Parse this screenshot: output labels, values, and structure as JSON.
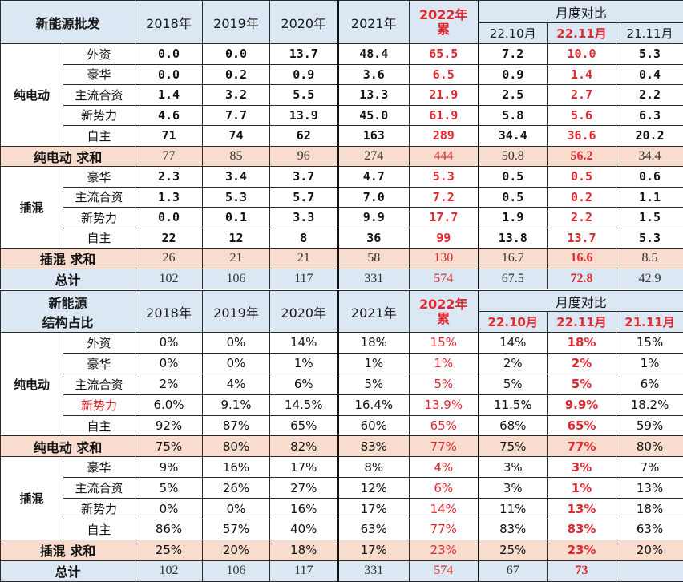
{
  "top": {
    "corner": "新能源批发",
    "years": [
      "2018年",
      "2019年",
      "2020年",
      "2021年"
    ],
    "y2022": [
      "2022年",
      "累"
    ],
    "monthly": "月度对比",
    "months": [
      "22.10月",
      "22.11月",
      "21.11月"
    ],
    "groups": [
      {
        "name": "纯电动",
        "rows": [
          {
            "cat": "外资",
            "v": [
              "0.0",
              "0.0",
              "13.7",
              "48.4",
              "65.5",
              "7.2",
              "10.0",
              "5.3"
            ]
          },
          {
            "cat": "豪华",
            "v": [
              "0.0",
              "0.2",
              "0.9",
              "3.6",
              "6.5",
              "0.9",
              "1.4",
              "0.4"
            ]
          },
          {
            "cat": "主流合资",
            "v": [
              "1.4",
              "3.2",
              "5.5",
              "13.3",
              "21.9",
              "2.5",
              "2.7",
              "2.2"
            ]
          },
          {
            "cat": "新势力",
            "v": [
              "4.6",
              "7.7",
              "13.9",
              "45.0",
              "61.9",
              "5.8",
              "5.6",
              "6.3"
            ]
          },
          {
            "cat": "自主",
            "v": [
              "71",
              "74",
              "62",
              "163",
              "289",
              "34.4",
              "36.6",
              "20.2"
            ]
          }
        ],
        "sum": {
          "label": "纯电动 求和",
          "v": [
            "77",
            "85",
            "96",
            "274",
            "444",
            "50.8",
            "56.2",
            "34.4"
          ]
        }
      },
      {
        "name": "插混",
        "rows": [
          {
            "cat": "豪华",
            "v": [
              "2.3",
              "3.4",
              "3.7",
              "4.7",
              "5.3",
              "0.5",
              "0.5",
              "0.6"
            ]
          },
          {
            "cat": "主流合资",
            "v": [
              "1.3",
              "5.3",
              "5.7",
              "7.0",
              "7.2",
              "0.5",
              "0.2",
              "1.1"
            ]
          },
          {
            "cat": "新势力",
            "v": [
              "0.0",
              "0.1",
              "3.3",
              "9.9",
              "17.7",
              "1.9",
              "2.2",
              "1.5"
            ]
          },
          {
            "cat": "自主",
            "v": [
              "22",
              "12",
              "8",
              "36",
              "99",
              "13.8",
              "13.7",
              "5.3"
            ]
          }
        ],
        "sum": {
          "label": "插混 求和",
          "v": [
            "26",
            "21",
            "21",
            "58",
            "130",
            "16.7",
            "16.6",
            "8.5"
          ]
        }
      }
    ],
    "total": {
      "label": "总计",
      "v": [
        "102",
        "106",
        "117",
        "331",
        "574",
        "67.5",
        "72.8",
        "42.9"
      ]
    }
  },
  "bottom": {
    "corner": [
      "新能源",
      "结构占比"
    ],
    "years": [
      "2018年",
      "2019年",
      "2020年",
      "2021年"
    ],
    "y2022": [
      "2022年",
      "累"
    ],
    "monthly": "月度对比",
    "months": [
      "22.10月",
      "22.11月",
      "21.11月"
    ],
    "groups": [
      {
        "name": "纯电动",
        "rows": [
          {
            "cat": "外资",
            "v": [
              "0%",
              "0%",
              "14%",
              "18%",
              "15%",
              "14%",
              "18%",
              "15%"
            ]
          },
          {
            "cat": "豪华",
            "v": [
              "0%",
              "0%",
              "1%",
              "1%",
              "1%",
              "2%",
              "2%",
              "1%"
            ]
          },
          {
            "cat": "主流合资",
            "v": [
              "2%",
              "4%",
              "6%",
              "5%",
              "5%",
              "5%",
              "5%",
              "6%"
            ]
          },
          {
            "cat": "新势力",
            "v": [
              "6.0%",
              "9.1%",
              "14.5%",
              "16.4%",
              "13.9%",
              "11.5%",
              "9.9%",
              "18.2%"
            ]
          },
          {
            "cat": "自主",
            "v": [
              "92%",
              "87%",
              "65%",
              "60%",
              "65%",
              "68%",
              "65%",
              "59%"
            ]
          }
        ],
        "sum": {
          "label": "纯电动 求和",
          "v": [
            "75%",
            "80%",
            "82%",
            "83%",
            "77%",
            "75%",
            "77%",
            "80%"
          ]
        }
      },
      {
        "name": "插混",
        "rows": [
          {
            "cat": "豪华",
            "v": [
              "9%",
              "16%",
              "17%",
              "8%",
              "4%",
              "3%",
              "3%",
              "7%"
            ]
          },
          {
            "cat": "主流合资",
            "v": [
              "5%",
              "26%",
              "27%",
              "12%",
              "6%",
              "3%",
              "1%",
              "13%"
            ]
          },
          {
            "cat": "新势力",
            "v": [
              "0%",
              "0%",
              "16%",
              "17%",
              "14%",
              "11%",
              "13%",
              "18%"
            ]
          },
          {
            "cat": "自主",
            "v": [
              "86%",
              "57%",
              "40%",
              "63%",
              "77%",
              "83%",
              "83%",
              "63%"
            ]
          }
        ],
        "sum": {
          "label": "插混 求和",
          "v": [
            "25%",
            "20%",
            "18%",
            "17%",
            "23%",
            "25%",
            "23%",
            "20%"
          ]
        }
      }
    ],
    "total": {
      "label": "总计",
      "v": [
        "102",
        "106",
        "117",
        "331",
        "574",
        "67",
        "73",
        ""
      ]
    }
  },
  "colors": {
    "header": "#dbe7f3",
    "sum": "#f8dccd",
    "red": "#e0282e"
  }
}
